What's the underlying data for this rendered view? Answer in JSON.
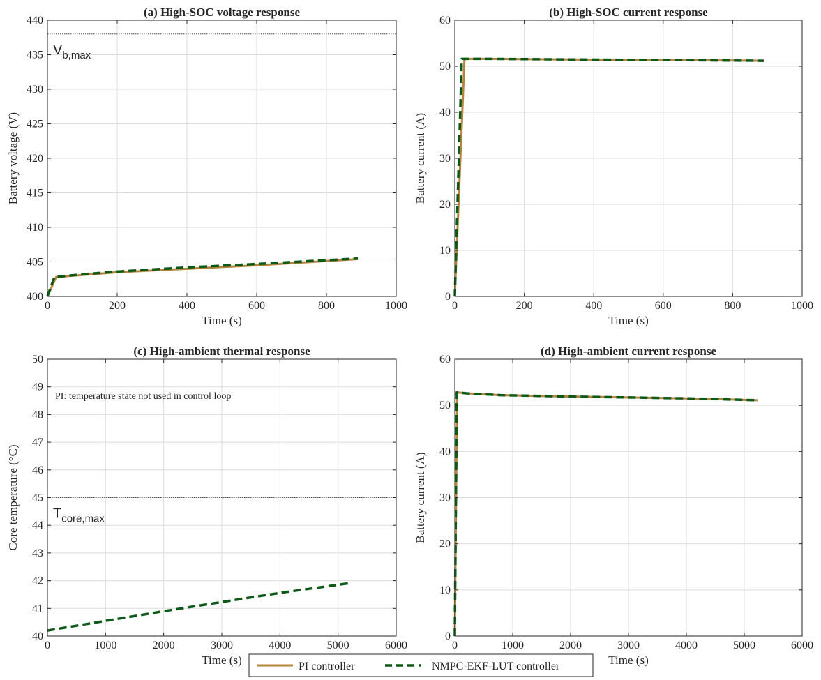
{
  "legend": {
    "entries": [
      {
        "label": "PI controller",
        "color": "#b5843d",
        "style": "solid"
      },
      {
        "label": "NMPC-EKF-LUT controller",
        "color": "#0d5a18",
        "style": "dashed"
      }
    ]
  },
  "chart_data": [
    {
      "id": "a",
      "type": "line",
      "title": "(a) High-SOC voltage response",
      "xlabel": "Time (s)",
      "ylabel": "Battery voltage (V)",
      "xlim": [
        0,
        1000
      ],
      "ylim": [
        400,
        440
      ],
      "xticks": [
        0,
        200,
        400,
        600,
        800,
        1000
      ],
      "yticks": [
        400,
        405,
        410,
        415,
        420,
        425,
        430,
        435,
        440
      ],
      "grid": true,
      "hlines": [
        {
          "y": 438,
          "label_main": "V",
          "label_sub": "b,max"
        }
      ],
      "series": [
        {
          "name": "PI controller",
          "color": "#b5843d",
          "style": "solid",
          "x": [
            0,
            25,
            100,
            200,
            400,
            600,
            890
          ],
          "y": [
            400.0,
            402.8,
            403.1,
            403.5,
            404.0,
            404.5,
            405.4
          ]
        },
        {
          "name": "NMPC-EKF-LUT controller",
          "color": "#0d5a18",
          "style": "dashed",
          "x": [
            0,
            20,
            100,
            200,
            400,
            600,
            890
          ],
          "y": [
            400.0,
            402.8,
            403.2,
            403.6,
            404.2,
            404.7,
            405.5
          ]
        }
      ]
    },
    {
      "id": "b",
      "type": "line",
      "title": "(b) High-SOC current response",
      "xlabel": "Time (s)",
      "ylabel": "Battery current (A)",
      "xlim": [
        0,
        1000
      ],
      "ylim": [
        0,
        60
      ],
      "xticks": [
        0,
        200,
        400,
        600,
        800,
        1000
      ],
      "yticks": [
        0,
        10,
        20,
        30,
        40,
        50,
        60
      ],
      "grid": true,
      "series": [
        {
          "name": "PI controller",
          "color": "#b5843d",
          "style": "solid",
          "x": [
            0,
            28,
            100,
            300,
            500,
            700,
            890
          ],
          "y": [
            0,
            51.6,
            51.6,
            51.5,
            51.4,
            51.3,
            51.2
          ]
        },
        {
          "name": "NMPC-EKF-LUT controller",
          "color": "#0d5a18",
          "style": "dashed",
          "x": [
            0,
            20,
            100,
            300,
            500,
            700,
            890
          ],
          "y": [
            0,
            51.6,
            51.6,
            51.5,
            51.4,
            51.3,
            51.2
          ]
        }
      ]
    },
    {
      "id": "c",
      "type": "line",
      "title": "(c) High-ambient thermal response",
      "xlabel": "Time (s)",
      "ylabel": "Core temperature (°C)",
      "xlim": [
        0,
        6000
      ],
      "ylim": [
        40,
        50
      ],
      "xticks": [
        0,
        1000,
        2000,
        3000,
        4000,
        5000,
        6000
      ],
      "yticks": [
        40,
        41,
        42,
        43,
        44,
        45,
        46,
        47,
        48,
        49,
        50
      ],
      "grid": true,
      "hlines": [
        {
          "y": 45,
          "label_main": "T",
          "label_sub": "core,max"
        }
      ],
      "annotation": "PI: temperature state not used in control loop",
      "series": [
        {
          "name": "NMPC-EKF-LUT controller",
          "color": "#0d5a18",
          "style": "dashed",
          "x": [
            0,
            1000,
            2000,
            3000,
            4000,
            5230
          ],
          "y": [
            40.2,
            40.55,
            40.9,
            41.23,
            41.56,
            41.92
          ]
        }
      ]
    },
    {
      "id": "d",
      "type": "line",
      "title": "(d) High-ambient current response",
      "xlabel": "Time (s)",
      "ylabel": "Battery current (A)",
      "xlim": [
        0,
        6000
      ],
      "ylim": [
        0,
        60
      ],
      "xticks": [
        0,
        1000,
        2000,
        3000,
        4000,
        5000,
        6000
      ],
      "yticks": [
        0,
        10,
        20,
        30,
        40,
        50,
        60
      ],
      "grid": true,
      "series": [
        {
          "name": "PI controller",
          "color": "#b5843d",
          "style": "solid",
          "x": [
            0,
            40,
            200,
            800,
            2000,
            3000,
            4000,
            5230
          ],
          "y": [
            0,
            52.8,
            52.6,
            52.2,
            51.9,
            51.7,
            51.5,
            51.1
          ]
        },
        {
          "name": "NMPC-EKF-LUT controller",
          "color": "#0d5a18",
          "style": "dashed",
          "x": [
            0,
            35,
            200,
            800,
            2000,
            3000,
            4000,
            5230
          ],
          "y": [
            0,
            52.8,
            52.6,
            52.2,
            51.9,
            51.7,
            51.5,
            51.1
          ]
        }
      ]
    }
  ]
}
